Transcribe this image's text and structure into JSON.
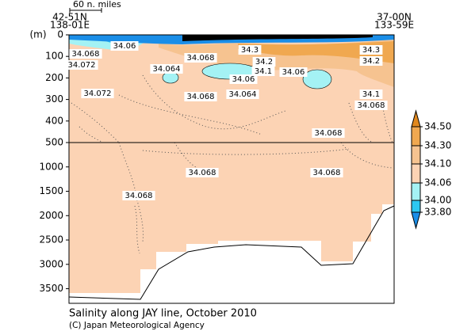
{
  "chart_data": {
    "type": "contour",
    "title": "Salinity along JAY line, October 2010",
    "credit": "(C) Japan Meteorological Agency",
    "y_label": "(m)",
    "scale_label": "60 n. miles",
    "start_lat": "42-51N",
    "start_lon": "138-01E",
    "end_lat": "37-00N",
    "end_lon": "133-59E",
    "ylim_upper": [
      0,
      500
    ],
    "yticks_upper": [
      0,
      100,
      200,
      300,
      400,
      500
    ],
    "ylim_lower": [
      500,
      3800
    ],
    "yticks_lower": [
      1000,
      1500,
      2000,
      2500,
      3000,
      3500
    ],
    "colorbar": {
      "levels": [
        {
          "value": 34.5,
          "label": "34.50"
        },
        {
          "value": 34.3,
          "label": "34.30"
        },
        {
          "value": 34.1,
          "label": "34.10"
        },
        34.06,
        {
          "value": 34,
          "label": "34.00"
        },
        {
          "value": 33.8,
          "label": "33.80"
        }
      ],
      "colors": [
        "#e0881e",
        "#f0a850",
        "#f6c390",
        "#fcd3b4",
        "#a4f2f4",
        "#2cc8f2",
        "#1a8ee8"
      ]
    },
    "contour_labels": [
      34.068,
      34.072,
      34.06,
      34.068,
      34.3,
      34.2,
      34.1,
      34.064,
      34.06,
      34.06,
      34.072,
      34.068,
      34.064,
      34.3,
      34.2,
      34.1,
      34.068,
      34.068,
      34.068,
      34.068,
      34.068
    ]
  }
}
